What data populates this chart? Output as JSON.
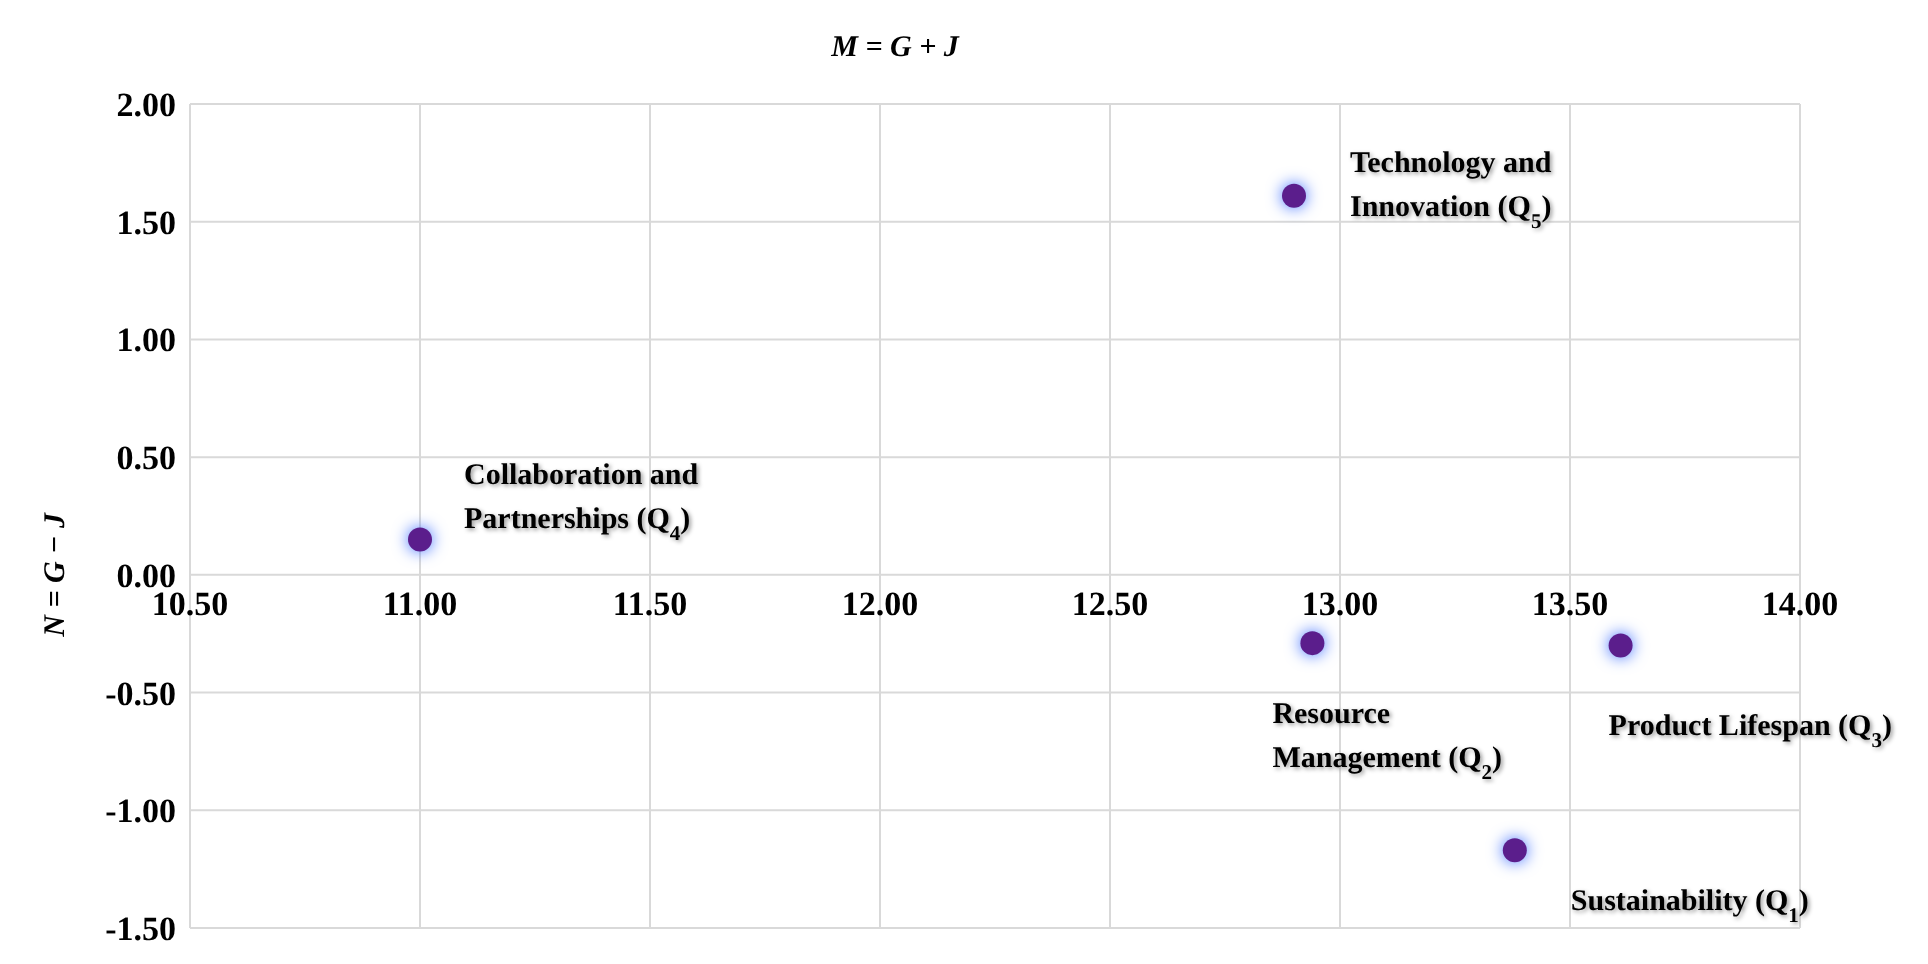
{
  "chart_data": {
    "type": "scatter",
    "title": "M = G + J",
    "ylabel": "N = G − J",
    "x": [
      12.9,
      11.0,
      12.94,
      13.61,
      13.38
    ],
    "series": [
      {
        "color": "#5b1e8c",
        "values": [
          1.61,
          0.15,
          -0.29,
          -0.3,
          -1.17
        ]
      }
    ],
    "xlim": [
      10.5,
      14
    ],
    "xticks": [
      {
        "value": 10.5,
        "label": "10.50"
      },
      {
        "value": 11,
        "label": "11.00"
      },
      {
        "value": 11.5,
        "label": "11.50"
      },
      {
        "value": 12,
        "label": "12.00"
      },
      {
        "value": 12.5,
        "label": "12.50"
      },
      {
        "value": 13,
        "label": "13.00"
      },
      {
        "value": 13.5,
        "label": "13.50"
      },
      {
        "value": 14,
        "label": "14.00"
      }
    ],
    "ylim": [
      -1.5,
      2
    ],
    "yticks": [
      {
        "value": -1.5,
        "label": "-1.50"
      },
      {
        "value": -1,
        "label": "-1.00"
      },
      {
        "value": -0.5,
        "label": "-0.50"
      },
      {
        "value": 0,
        "label": "0.00"
      },
      {
        "value": 0.5,
        "label": "0.50"
      },
      {
        "value": 1,
        "label": "1.00"
      },
      {
        "value": 1.5,
        "label": "1.50"
      },
      {
        "value": 2,
        "label": "2.00"
      }
    ],
    "grid": true,
    "marker": "circle",
    "annotations": [
      {
        "text": "Technology and Innovation (Q$_{5}$)",
        "x": 12.9,
        "y": 1.61
      },
      {
        "text": "Collaboration and Partnerships (Q$_{4}$)",
        "x": 11.0,
        "y": 0.15
      },
      {
        "text": "Resource Management (Q$_{2}$)",
        "x": 12.94,
        "y": -0.29
      },
      {
        "text": "Product Lifespan (Q$_{3}$)",
        "x": 13.61,
        "y": -0.3
      },
      {
        "text": "Sustainability (Q$_{1}$)",
        "x": 13.38,
        "y": -1.17
      }
    ]
  }
}
